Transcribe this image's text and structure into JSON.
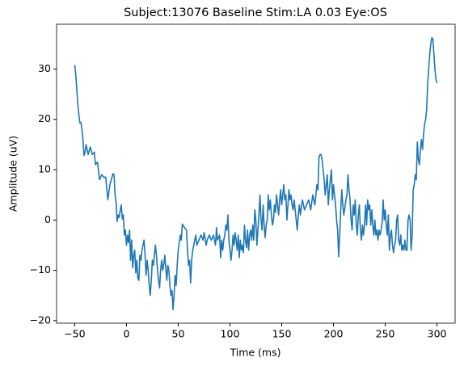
{
  "chart_data": {
    "type": "line",
    "title": "Subject:13076 Baseline Stim:LA 0.03 Eye:OS",
    "xlabel": "Time (ms)",
    "ylabel": "Amplitude (uV)",
    "series": [
      {
        "name": "Amplitude",
        "color": "#1f77b4",
        "x": [
          -50,
          -49,
          -48,
          -47,
          -46,
          -45,
          -44,
          -43,
          -42,
          -41,
          -40,
          -39,
          -37,
          -35,
          -33,
          -31,
          -30,
          -28,
          -26,
          -24,
          -22,
          -20,
          -18,
          -16,
          -14,
          -13,
          -12,
          -11,
          -10,
          -9,
          -8,
          -7,
          -6,
          -5,
          -4,
          -3,
          -2,
          -1,
          0,
          1,
          2,
          3,
          4,
          5,
          6,
          7,
          8,
          9,
          10,
          11,
          12,
          13,
          14,
          15,
          16,
          17,
          18,
          19,
          20,
          21,
          22,
          23,
          24,
          25,
          26,
          28,
          29,
          30,
          31,
          32,
          33,
          34,
          35,
          36,
          37,
          38,
          39,
          40,
          41,
          42,
          43,
          44,
          45,
          46,
          47,
          48,
          49,
          50,
          52,
          53,
          54,
          56,
          58,
          59,
          60,
          61,
          62,
          63,
          64,
          65,
          66,
          67,
          68,
          70,
          72,
          74,
          75,
          77,
          78,
          80,
          82,
          84,
          86,
          87,
          88,
          90,
          91,
          92,
          93,
          94,
          95,
          96,
          97,
          98,
          99,
          100,
          101,
          102,
          103,
          104,
          105,
          106,
          107,
          108,
          109,
          110,
          111,
          112,
          113,
          114,
          115,
          116,
          117,
          118,
          119,
          120,
          121,
          122,
          123,
          124,
          125,
          126,
          127,
          128,
          129,
          130,
          131,
          132,
          133,
          134,
          135,
          136,
          137,
          138,
          139,
          140,
          141,
          142,
          143,
          144,
          145,
          146,
          147,
          148,
          149,
          150,
          151,
          152,
          153,
          154,
          155,
          156,
          157,
          158,
          159,
          160,
          161,
          162,
          163,
          164,
          165,
          166,
          167,
          168,
          170,
          172,
          174,
          176,
          178,
          180,
          182,
          184,
          185,
          186,
          187,
          188,
          189,
          190,
          191,
          192,
          193,
          194,
          195,
          196,
          197,
          198,
          199,
          200,
          201,
          202,
          203,
          204,
          205,
          206,
          207,
          208,
          209,
          210,
          212,
          213,
          214,
          215,
          216,
          217,
          218,
          219,
          220,
          221,
          222,
          223,
          224,
          225,
          226,
          227,
          228,
          229,
          230,
          231,
          232,
          233,
          234,
          235,
          236,
          237,
          238,
          239,
          240,
          241,
          242,
          243,
          244,
          245,
          246,
          247,
          248,
          249,
          250,
          251,
          252,
          253,
          254,
          255,
          256,
          257,
          258,
          259,
          260,
          261,
          262,
          263,
          264,
          265,
          266,
          267,
          268,
          269,
          270,
          271,
          272,
          273,
          274,
          275,
          276,
          277,
          278,
          279,
          280,
          281,
          282,
          283,
          284,
          285,
          286,
          287,
          288,
          289,
          290,
          291,
          292,
          293,
          294,
          295,
          296,
          297,
          298,
          299,
          300
        ],
        "values": [
          30.8,
          29,
          26,
          23,
          21,
          19.3,
          19.4,
          18,
          16,
          12.8,
          13.5,
          15,
          13,
          14.5,
          13,
          13.5,
          11,
          11.5,
          8,
          9,
          8.5,
          8.5,
          4,
          7,
          8.5,
          9.2,
          9,
          5,
          3.5,
          -0.3,
          1,
          0.5,
          2,
          3,
          0.2,
          1,
          -3,
          -2,
          -5,
          -3,
          -4.5,
          -2,
          -8,
          -4,
          -9.5,
          -7,
          -6,
          -10.5,
          -8,
          -11.5,
          -12,
          -7,
          -8,
          -6,
          -5,
          -4,
          -7,
          -11,
          -8,
          -10,
          -13,
          -15,
          -12,
          -8,
          -9,
          -5,
          -7,
          -10,
          -12,
          -13.5,
          -10,
          -8,
          -10,
          -9,
          -7,
          -9.5,
          -12,
          -9,
          -10,
          -13,
          -15,
          -14,
          -17.8,
          -15,
          -11,
          -13,
          -9,
          -6,
          -3,
          -4,
          -0.8,
          -1.5,
          -2,
          -6,
          -9,
          -8,
          -12.5,
          -8,
          -6,
          -5,
          -4,
          -3,
          -5,
          -4,
          -3,
          -4,
          -2.5,
          -5,
          -4,
          -3,
          -4,
          -3,
          -5,
          -1.5,
          -4,
          -3,
          -7.5,
          -4,
          -6,
          -4,
          -3,
          -1,
          -2,
          1,
          -4,
          -6,
          -8,
          -6,
          -3,
          -5,
          -2.5,
          -4,
          -6,
          -3,
          -7.5,
          -4,
          -6,
          -5,
          -6.5,
          -1,
          -4,
          -5.5,
          -2,
          -6,
          -3,
          -2,
          -4,
          -1,
          -4,
          2,
          0,
          -5,
          -2,
          1,
          5,
          0,
          -2,
          3,
          -1,
          -3.5,
          -1,
          0,
          5,
          2,
          4,
          1,
          -1,
          0,
          3,
          1.5,
          5,
          3,
          1,
          4,
          6,
          3,
          5,
          7,
          4,
          5,
          0,
          3,
          6,
          4,
          5,
          3,
          2,
          4,
          2,
          0,
          -2,
          1,
          3,
          1,
          4,
          2,
          3,
          4,
          2,
          5,
          3,
          7,
          6,
          12.5,
          13,
          13,
          12,
          10,
          8,
          5,
          7,
          9,
          3,
          6,
          8,
          10,
          4,
          7,
          5,
          3,
          0,
          -2,
          -7.3,
          -3,
          2,
          6,
          3,
          1,
          4,
          5,
          9,
          6,
          4,
          0,
          -2,
          3,
          1,
          4,
          -1,
          -3,
          1,
          3,
          -2,
          -4,
          -1,
          -3,
          -1,
          3,
          -1,
          4,
          2,
          3,
          -1,
          2,
          -1,
          -3,
          0,
          -3,
          -2,
          -4,
          -2,
          -3,
          -2,
          -0.5,
          4,
          0,
          2,
          -1,
          -3,
          1,
          -6,
          -3,
          -2,
          -5,
          -6.5,
          -5,
          -4,
          0,
          1,
          -4,
          -5,
          -3,
          -6,
          -5,
          -6,
          -4,
          -6,
          -6,
          0,
          1,
          0,
          -6,
          -3,
          6,
          7,
          9,
          8,
          15.5,
          12,
          11,
          14,
          16,
          14,
          17,
          19,
          20,
          22,
          27,
          30,
          33,
          35,
          36.2,
          36,
          33,
          30,
          28,
          27.2
        ]
      }
    ],
    "xlim": [
      -67.5,
      317.5
    ],
    "ylim": [
      -20.5,
      38.9
    ],
    "xticks": [
      {
        "value": -50,
        "label": "−50"
      },
      0,
      50,
      100,
      150,
      200,
      250,
      300
    ],
    "yticks": [
      {
        "value": -20,
        "label": "−20"
      },
      {
        "value": -10,
        "label": "−10"
      },
      0,
      10,
      20,
      30
    ],
    "grid": false
  }
}
